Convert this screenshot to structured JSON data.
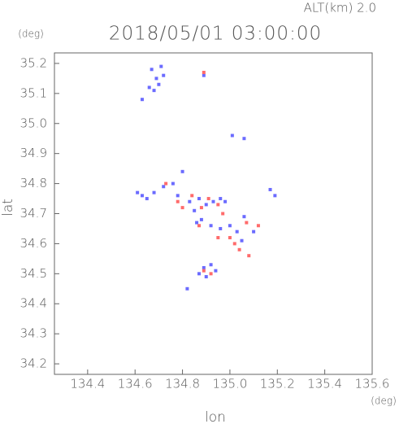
{
  "chart_data": {
    "type": "scatter",
    "title": "2018/05/01 03:00:00",
    "subtitle": "ALT(km) 2.0",
    "x_label": "lon",
    "y_label": "lat",
    "x_unit": "(deg)",
    "y_unit": "(deg)",
    "xlim": [
      134.26,
      135.6
    ],
    "ylim": [
      34.165,
      35.235
    ],
    "xticks": [
      134.4,
      134.6,
      134.8,
      {
        "value": 135.0,
        "label": "135.0"
      },
      135.2,
      135.4,
      135.6
    ],
    "yticks": [
      {
        "value": 34.2,
        "label": "34.2"
      },
      34.3,
      34.4,
      34.5,
      34.6,
      34.7,
      34.8,
      34.9,
      {
        "value": 35.0,
        "label": "35.0"
      },
      35.1,
      35.2
    ],
    "series": [
      {
        "color": "#6b6bff",
        "x": [
          134.67,
          134.69,
          134.7,
          134.66,
          134.72,
          134.71,
          134.63,
          134.68,
          134.89,
          135.01,
          135.06,
          134.61,
          134.63,
          134.65,
          134.68,
          134.72,
          134.76,
          134.8,
          134.78,
          134.83,
          134.87,
          134.9,
          134.93,
          134.96,
          134.98,
          134.85,
          134.88,
          134.92,
          134.96,
          135.0,
          135.03,
          135.05,
          135.06,
          135.1,
          135.17,
          135.19,
          134.87,
          134.89,
          134.92,
          134.94,
          134.9,
          134.82,
          134.86
        ],
        "values": [
          35.18,
          35.15,
          35.13,
          35.12,
          35.16,
          35.19,
          35.08,
          35.11,
          35.16,
          34.96,
          34.95,
          34.77,
          34.76,
          34.75,
          34.77,
          34.79,
          34.8,
          34.84,
          34.76,
          34.74,
          34.75,
          34.73,
          34.74,
          34.75,
          34.74,
          34.71,
          34.68,
          34.66,
          34.65,
          34.66,
          34.64,
          34.61,
          34.69,
          34.64,
          34.78,
          34.76,
          34.5,
          34.52,
          34.53,
          34.51,
          34.49,
          34.45,
          34.67
        ]
      },
      {
        "color": "#ff6b6b",
        "x": [
          134.89,
          134.73,
          134.78,
          134.84,
          134.88,
          134.91,
          134.95,
          134.87,
          134.95,
          135.0,
          135.04,
          135.07,
          135.02,
          135.08,
          135.12,
          134.89,
          134.92,
          134.8,
          134.97
        ],
        "values": [
          35.17,
          34.8,
          34.74,
          34.76,
          34.72,
          34.75,
          34.73,
          34.66,
          34.62,
          34.62,
          34.58,
          34.67,
          34.6,
          34.56,
          34.66,
          34.51,
          34.5,
          34.72,
          34.7
        ]
      }
    ]
  }
}
